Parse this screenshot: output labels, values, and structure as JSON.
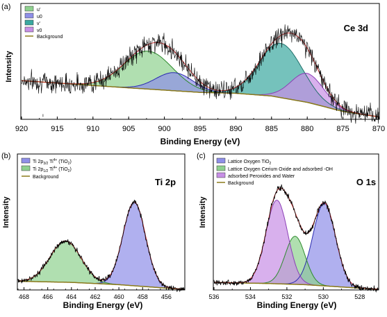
{
  "chart_data": [
    {
      "panel_label": "(a)",
      "type": "line",
      "title": "Ce 3d",
      "xlabel": "Binding Energy (eV)",
      "ylabel": "Intensity",
      "xlim": [
        920,
        870
      ],
      "x_reversed": true,
      "xticks": [
        920,
        915,
        910,
        905,
        900,
        895,
        890,
        885,
        880,
        875,
        870
      ],
      "y_ticks_shown": false,
      "legend_position": "top-left",
      "reference_line_x": 917,
      "colors": {
        "u_prime": "#8fd18f",
        "u0": "#8f8fe8",
        "v_prime": "#3aa8a0",
        "v0": "#c78fe6",
        "background": "#8a7a1a",
        "fit": "#d32f2f",
        "data": "#000000"
      },
      "series": [
        {
          "name": "u'",
          "type": "area",
          "color": "#8fd18f",
          "center": 902.3,
          "width": 3.4,
          "height": 0.42
        },
        {
          "name": "u0",
          "type": "area",
          "color": "#8f8fe8",
          "center": 898.6,
          "width": 2.6,
          "height": 0.2
        },
        {
          "name": "v'",
          "type": "area",
          "color": "#3aa8a0",
          "center": 883.7,
          "width": 3.0,
          "height": 0.6
        },
        {
          "name": "v0",
          "type": "area",
          "color": "#c78fe6",
          "center": 880.0,
          "width": 2.3,
          "height": 0.32
        },
        {
          "name": "Background",
          "type": "line",
          "color": "#8a7a1a",
          "x": [
            920,
            905,
            895,
            890,
            885,
            880,
            875,
            870
          ],
          "y": [
            0.42,
            0.34,
            0.29,
            0.28,
            0.25,
            0.18,
            0.08,
            0.02
          ]
        }
      ]
    },
    {
      "panel_label": "(b)",
      "type": "line",
      "title": "Ti 2p",
      "xlabel": "Binding Energy (eV)",
      "ylabel": "Intensity",
      "xlim": [
        468.5,
        454.5
      ],
      "x_reversed": true,
      "xticks": [
        468,
        466,
        464,
        462,
        460,
        458,
        456
      ],
      "y_ticks_shown": false,
      "legend_position": "top-left",
      "colors": {
        "ti_2p32": "#8f8fe8",
        "ti_2p12": "#8fd18f",
        "background": "#8a7a1a",
        "fit": "#d32f2f",
        "data": "#000000"
      },
      "series": [
        {
          "name": "Ti 2p3/2 Ti4+ (TiO2)",
          "type": "area",
          "color": "#8f8fe8",
          "center": 458.7,
          "width": 0.95,
          "height": 0.73
        },
        {
          "name": "Ti 2p1/2 Ti4+ (TiO2)",
          "type": "area",
          "color": "#8fd18f",
          "center": 464.5,
          "width": 1.3,
          "height": 0.36
        },
        {
          "name": "Background",
          "type": "line",
          "color": "#8a7a1a",
          "x": [
            468.5,
            464,
            460,
            456,
            454.5
          ],
          "y": [
            0.07,
            0.06,
            0.04,
            0.01,
            0.0
          ]
        }
      ]
    },
    {
      "panel_label": "(c)",
      "type": "line",
      "title": "O 1s",
      "xlabel": "Binding Energy (eV)",
      "ylabel": "Intensity",
      "xlim": [
        536,
        527
      ],
      "x_reversed": true,
      "xticks": [
        536,
        534,
        532,
        530,
        528
      ],
      "y_ticks_shown": false,
      "legend_position": "top-left",
      "colors": {
        "lattice_tio2": "#8f8fe8",
        "lattice_ceo": "#8fd18f",
        "peroxide": "#c78fe6",
        "background": "#8a7a1a",
        "fit": "#d32f2f",
        "data": "#000000"
      },
      "series": [
        {
          "name": "Lattice Oxygen TiO2",
          "type": "area",
          "color": "#8f8fe8",
          "center": 529.95,
          "width": 0.62,
          "height": 0.72
        },
        {
          "name": "Lattice Oxygen Cerium Oxide and adsorbed -OH",
          "type": "area",
          "color": "#8fd18f",
          "center": 531.55,
          "width": 0.55,
          "height": 0.42
        },
        {
          "name": "adsorbed Peroxides and Water",
          "type": "area",
          "color": "#c78fe6",
          "center": 532.55,
          "width": 0.6,
          "height": 0.73
        },
        {
          "name": "Background",
          "type": "line",
          "color": "#8a7a1a",
          "x": [
            536,
            533,
            531,
            529,
            527
          ],
          "y": [
            0.06,
            0.05,
            0.04,
            0.02,
            0.0
          ]
        }
      ]
    }
  ],
  "panels": {
    "a": {
      "label": "(a)",
      "title": "Ce 3d",
      "xlabel": "Binding Energy (eV)",
      "ylabel": "Intensity",
      "legend": [
        "u'",
        "u0",
        "v'",
        "v0",
        "Background"
      ]
    },
    "b": {
      "label": "(b)",
      "title": "Ti 2p",
      "xlabel": "Binding Energy (eV)",
      "ylabel": "Intensity",
      "legend_main": [
        "Ti 2p",
        "Ti 2p",
        "Background"
      ],
      "legend_sub": [
        "3/2",
        "1/2"
      ],
      "legend_suffix": [
        " Ti",
        " Ti"
      ],
      "legend_sup": [
        "4+",
        "4+"
      ],
      "legend_tail": [
        " (TiO",
        " (TiO"
      ],
      "legend_tail_sub": [
        "2",
        "2"
      ],
      "legend_close": [
        ")",
        ")"
      ]
    },
    "c": {
      "label": "(c)",
      "title": "O 1s",
      "xlabel": "Binding Energy (eV)",
      "ylabel": "Intensity",
      "legend_first": "Lattice Oxygen TiO",
      "legend_first_sub": "2",
      "legend": [
        "Lattice Oxygen Cerium Oxide and adsorbed -OH",
        "adsorbed Peroxides and Water",
        "Background"
      ]
    }
  }
}
